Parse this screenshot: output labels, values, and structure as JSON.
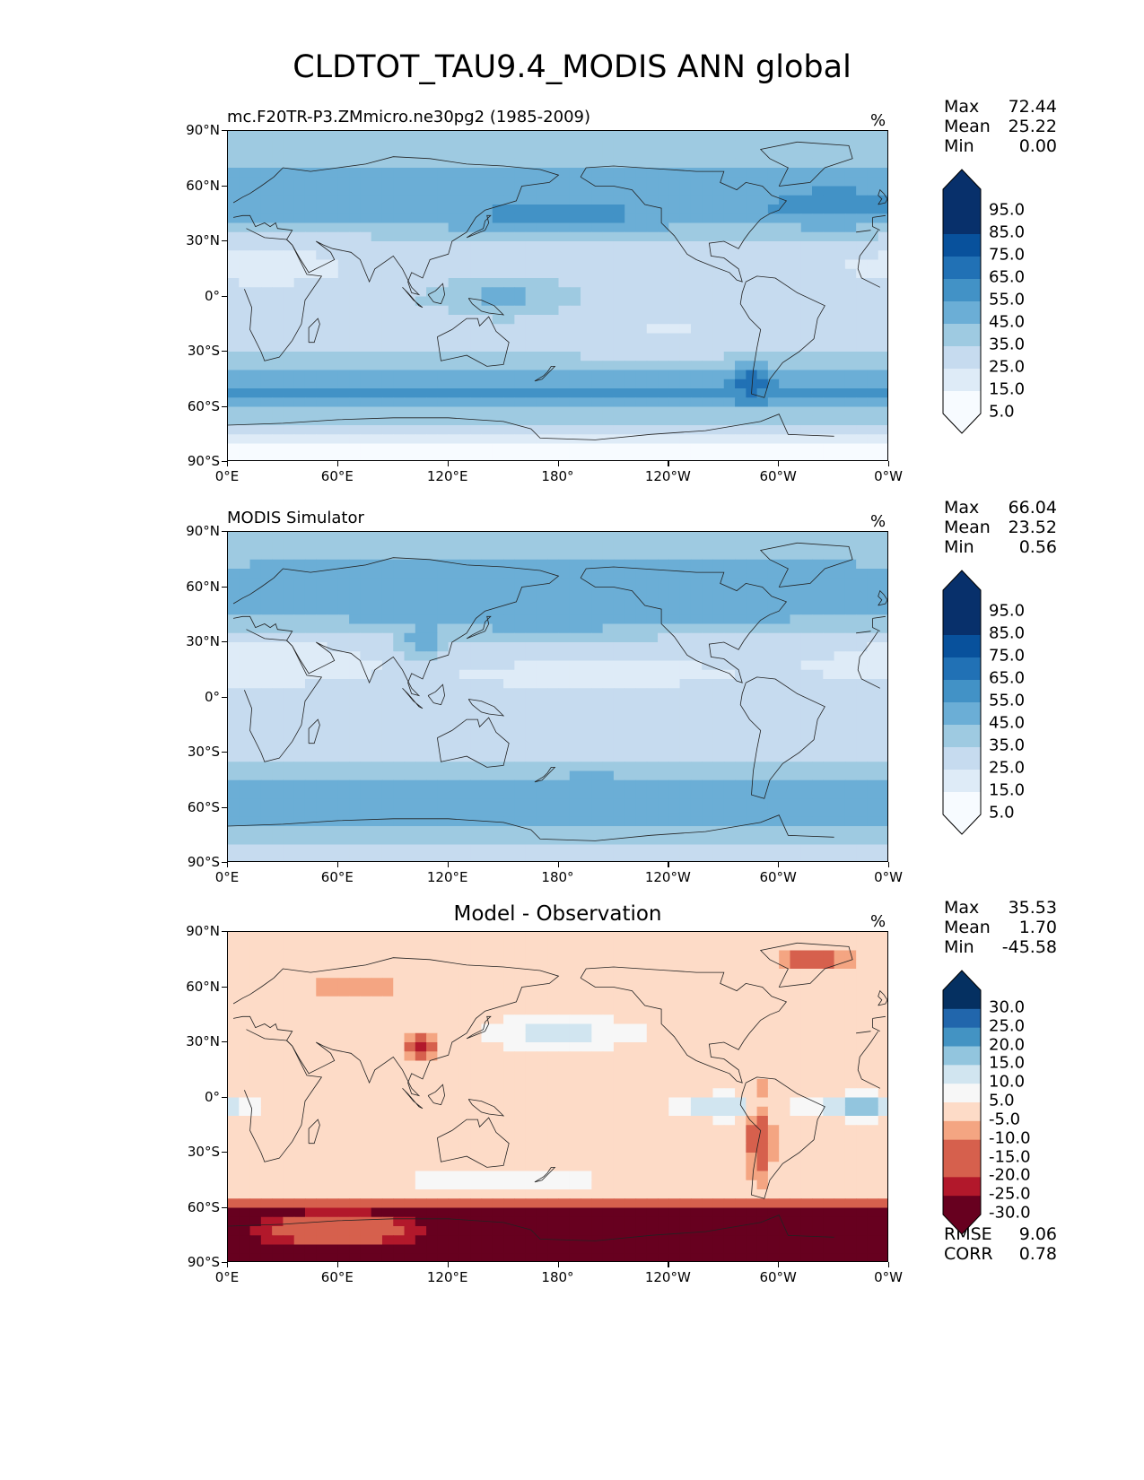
{
  "title": "CLDTOT_TAU9.4_MODIS ANN global",
  "x_ticks": [
    "0°E",
    "60°E",
    "120°E",
    "180°",
    "120°W",
    "60°W",
    "0°W"
  ],
  "y_ticks": [
    "90°N",
    "60°N",
    "30°N",
    "0°",
    "30°S",
    "60°S",
    "90°S"
  ],
  "colors": {
    "blues": [
      "#f7fbff",
      "#deebf7",
      "#c6dbef",
      "#9ecae1",
      "#6baed6",
      "#4292c6",
      "#2171b5",
      "#08519c",
      "#08306b"
    ],
    "diverging": [
      "#67001f",
      "#b2182b",
      "#d6604d",
      "#f4a582",
      "#fddbc7",
      "#f7f7f7",
      "#d1e5f0",
      "#92c5de",
      "#4393c3",
      "#2166ac",
      "#053061"
    ]
  },
  "chart_data": [
    {
      "type": "heatmap",
      "title": "mc.F20TR-P3.ZMmicro.ne30pg2 (1985-2009)",
      "units": "%",
      "stats": {
        "Max": "72.44",
        "Mean": "25.22",
        "Min": "0.00"
      },
      "colorbar_labels": [
        "95.0",
        "85.0",
        "75.0",
        "65.0",
        "55.0",
        "45.0",
        "35.0",
        "25.0",
        "15.0",
        "5.0"
      ],
      "x_range": [
        0,
        360
      ],
      "y_range": [
        -90,
        90
      ],
      "description_zonal_mean_percent": [
        {
          "lat": 80,
          "value": 30
        },
        {
          "lat": 60,
          "value": 38
        },
        {
          "lat": 45,
          "value": 40
        },
        {
          "lat": 30,
          "value": 22
        },
        {
          "lat": 15,
          "value": 18
        },
        {
          "lat": 0,
          "value": 25
        },
        {
          "lat": -15,
          "value": 20
        },
        {
          "lat": -30,
          "value": 22
        },
        {
          "lat": -45,
          "value": 42
        },
        {
          "lat": -55,
          "value": 48
        },
        {
          "lat": -65,
          "value": 30
        },
        {
          "lat": -80,
          "value": 3
        }
      ]
    },
    {
      "type": "heatmap",
      "title": "MODIS Simulator",
      "units": "%",
      "stats": {
        "Max": "66.04",
        "Mean": "23.52",
        "Min": "0.56"
      },
      "colorbar_labels": [
        "95.0",
        "85.0",
        "75.0",
        "65.0",
        "55.0",
        "45.0",
        "35.0",
        "25.0",
        "15.0",
        "5.0"
      ],
      "x_range": [
        0,
        360
      ],
      "y_range": [
        -90,
        90
      ],
      "description_zonal_mean_percent": [
        {
          "lat": 80,
          "value": 32
        },
        {
          "lat": 60,
          "value": 40
        },
        {
          "lat": 45,
          "value": 38
        },
        {
          "lat": 30,
          "value": 20
        },
        {
          "lat": 15,
          "value": 15
        },
        {
          "lat": 0,
          "value": 22
        },
        {
          "lat": -15,
          "value": 18
        },
        {
          "lat": -30,
          "value": 20
        },
        {
          "lat": -45,
          "value": 38
        },
        {
          "lat": -55,
          "value": 45
        },
        {
          "lat": -65,
          "value": 42
        },
        {
          "lat": -80,
          "value": 22
        }
      ]
    },
    {
      "type": "heatmap",
      "title": "Model - Observation",
      "units": "%",
      "stats": {
        "Max": "35.53",
        "Mean": "1.70",
        "Min": "-45.58"
      },
      "colorbar_labels": [
        "30.0",
        "25.0",
        "20.0",
        "15.0",
        "10.0",
        "5.0",
        "-5.0",
        "-10.0",
        "-15.0",
        "-20.0",
        "-25.0",
        "-30.0"
      ],
      "rmse": {
        "RMSE": "9.06",
        "CORR": "0.78"
      },
      "x_range": [
        0,
        360
      ],
      "y_range": [
        -90,
        90
      ]
    }
  ]
}
